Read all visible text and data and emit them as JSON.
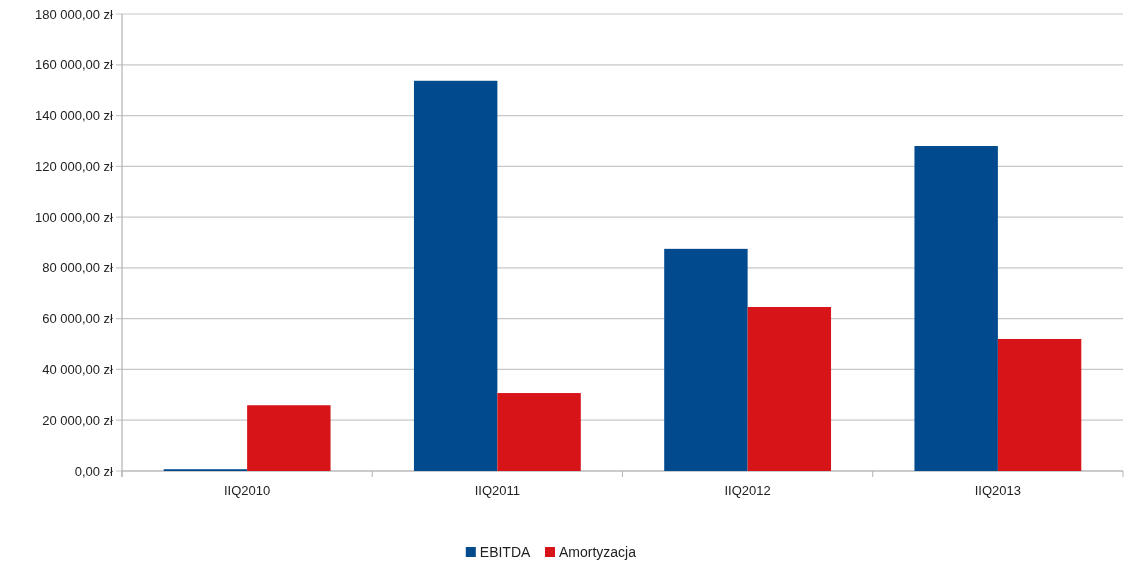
{
  "chart_data": {
    "type": "bar",
    "categories": [
      "IIQ2010",
      "IIQ2011",
      "IIQ2012",
      "IIQ2013"
    ],
    "series": [
      {
        "name": "EBITDA",
        "color": "#004a8d",
        "values": [
          700,
          153700,
          87500,
          128000
        ]
      },
      {
        "name": "Amortyzacja",
        "color": "#d71418",
        "values": [
          25900,
          30700,
          64600,
          52000
        ]
      }
    ],
    "ylim": [
      0,
      180000
    ],
    "yticks": [
      {
        "value": 0,
        "label": "0,00 zł"
      },
      {
        "value": 20000,
        "label": "20 000,00 zł"
      },
      {
        "value": 40000,
        "label": "40 000,00 zł"
      },
      {
        "value": 60000,
        "label": "60 000,00 zł"
      },
      {
        "value": 80000,
        "label": "80 000,00 zł"
      },
      {
        "value": 100000,
        "label": "100 000,00 zł"
      },
      {
        "value": 120000,
        "label": "120 000,00 zł"
      },
      {
        "value": 140000,
        "label": "140 000,00 zł"
      },
      {
        "value": 160000,
        "label": "160 000,00 zł"
      },
      {
        "value": 180000,
        "label": "180 000,00 zł"
      }
    ],
    "grid": "y",
    "legend": "bottom"
  }
}
